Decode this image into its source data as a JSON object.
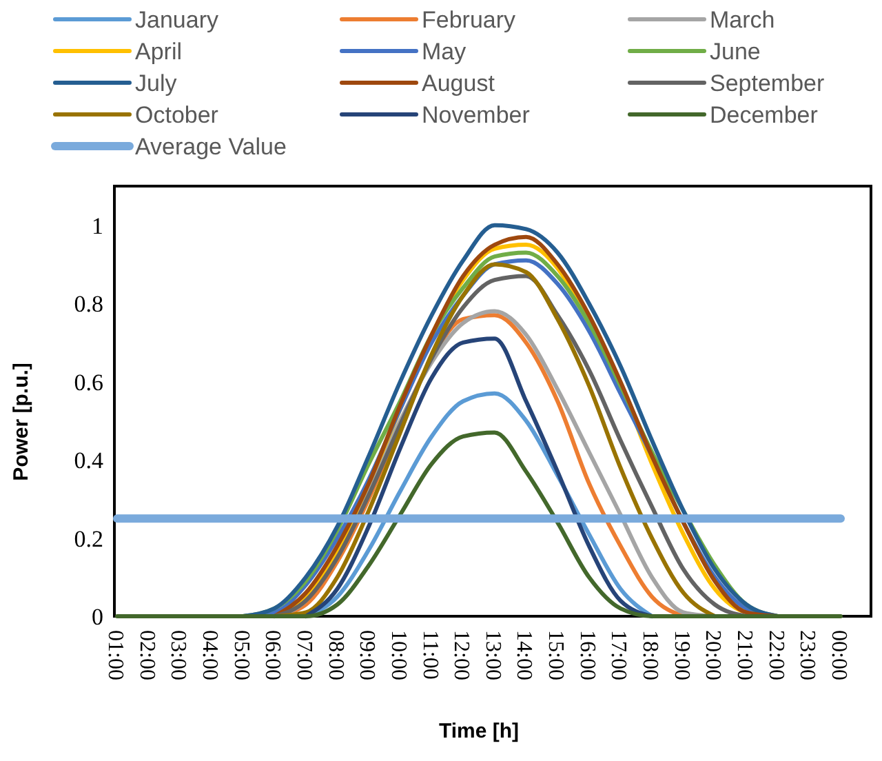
{
  "chart_data": {
    "type": "line",
    "xlabel": "Time [h]",
    "ylabel": "Power [p.u.]",
    "categories": [
      "01:00",
      "02:00",
      "03:00",
      "04:00",
      "05:00",
      "06:00",
      "07:00",
      "08:00",
      "09:00",
      "10:00",
      "11:00",
      "12:00",
      "13:00",
      "14:00",
      "15:00",
      "16:00",
      "17:00",
      "18:00",
      "19:00",
      "20:00",
      "21:00",
      "22:00",
      "23:00",
      "00:00"
    ],
    "ylim": [
      0,
      1.1
    ],
    "yticks": [
      0,
      0.2,
      0.4,
      0.6,
      0.8,
      1
    ],
    "grid": false,
    "legend": "top",
    "marker": "none",
    "line_style": "solid",
    "series": [
      {
        "name": "January",
        "color": "#5b9bd5",
        "values": [
          null,
          null,
          null,
          null,
          null,
          null,
          0,
          0.05,
          0.17,
          0.32,
          0.46,
          0.55,
          0.57,
          0.5,
          0.36,
          0.21,
          0.07,
          0,
          null,
          null,
          null,
          null,
          null,
          null
        ]
      },
      {
        "name": "February",
        "color": "#ed7d31",
        "values": [
          null,
          null,
          null,
          null,
          null,
          0,
          0.03,
          0.14,
          0.3,
          0.49,
          0.66,
          0.76,
          0.77,
          0.7,
          0.55,
          0.34,
          0.18,
          0.05,
          0,
          null,
          null,
          null,
          null,
          null
        ]
      },
      {
        "name": "March",
        "color": "#a5a5a5",
        "values": [
          null,
          null,
          null,
          null,
          null,
          0,
          0.04,
          0.16,
          0.32,
          0.5,
          0.65,
          0.75,
          0.78,
          0.72,
          0.58,
          0.42,
          0.26,
          0.1,
          0.01,
          0,
          null,
          null,
          null,
          null
        ]
      },
      {
        "name": "April",
        "color": "#ffc000",
        "values": [
          null,
          null,
          null,
          null,
          null,
          0,
          0.05,
          0.17,
          0.34,
          0.53,
          0.72,
          0.86,
          0.94,
          0.95,
          0.89,
          0.75,
          0.59,
          0.39,
          0.21,
          0.07,
          0.01,
          0,
          null,
          null
        ]
      },
      {
        "name": "May",
        "color": "#4472c4",
        "values": [
          null,
          null,
          null,
          null,
          0,
          0.01,
          0.08,
          0.2,
          0.35,
          0.53,
          0.7,
          0.82,
          0.9,
          0.91,
          0.85,
          0.73,
          0.57,
          0.41,
          0.24,
          0.1,
          0.02,
          0,
          null,
          null
        ]
      },
      {
        "name": "June",
        "color": "#70ad47",
        "values": [
          null,
          null,
          null,
          null,
          0,
          0.02,
          0.09,
          0.22,
          0.39,
          0.55,
          0.72,
          0.84,
          0.92,
          0.93,
          0.87,
          0.75,
          0.59,
          0.42,
          0.27,
          0.13,
          0.03,
          0,
          null,
          null
        ]
      },
      {
        "name": "July",
        "color": "#255e91",
        "values": [
          null,
          null,
          null,
          null,
          0,
          0.02,
          0.1,
          0.23,
          0.41,
          0.6,
          0.77,
          0.91,
          1,
          0.99,
          0.93,
          0.8,
          0.64,
          0.45,
          0.27,
          0.12,
          0.03,
          0,
          null,
          null
        ]
      },
      {
        "name": "August",
        "color": "#9e480e",
        "values": [
          null,
          null,
          null,
          null,
          null,
          0,
          0.06,
          0.18,
          0.34,
          0.54,
          0.72,
          0.87,
          0.95,
          0.97,
          0.9,
          0.77,
          0.6,
          0.41,
          0.24,
          0.09,
          0.01,
          0,
          null,
          null
        ]
      },
      {
        "name": "September",
        "color": "#636363",
        "values": [
          null,
          null,
          null,
          null,
          null,
          0,
          0.04,
          0.15,
          0.31,
          0.49,
          0.66,
          0.79,
          0.86,
          0.87,
          0.77,
          0.63,
          0.45,
          0.28,
          0.12,
          0.03,
          0,
          null,
          null,
          null
        ]
      },
      {
        "name": "October",
        "color": "#997300",
        "values": [
          null,
          null,
          null,
          null,
          null,
          0,
          0.01,
          0.1,
          0.27,
          0.47,
          0.67,
          0.82,
          0.9,
          0.88,
          0.76,
          0.59,
          0.38,
          0.2,
          0.06,
          0,
          null,
          null,
          null,
          null
        ]
      },
      {
        "name": "November",
        "color": "#264478",
        "values": [
          null,
          null,
          null,
          null,
          null,
          null,
          0,
          0.07,
          0.23,
          0.43,
          0.61,
          0.7,
          0.71,
          0.55,
          0.37,
          0.18,
          0.04,
          0,
          null,
          null,
          null,
          null,
          null,
          null
        ]
      },
      {
        "name": "December",
        "color": "#43682b",
        "values": [
          0,
          0,
          0,
          0,
          0,
          0,
          0,
          0.03,
          0.13,
          0.26,
          0.39,
          0.46,
          0.47,
          0.37,
          0.24,
          0.1,
          0.02,
          0,
          0,
          0,
          0,
          0,
          0,
          0
        ]
      },
      {
        "name": "Average Value",
        "color": "#7aaadc",
        "values": [
          0.25,
          0.25,
          0.25,
          0.25,
          0.25,
          0.25,
          0.25,
          0.25,
          0.25,
          0.25,
          0.25,
          0.25,
          0.25,
          0.25,
          0.25,
          0.25,
          0.25,
          0.25,
          0.25,
          0.25,
          0.25,
          0.25,
          0.25,
          0.25
        ]
      }
    ]
  }
}
